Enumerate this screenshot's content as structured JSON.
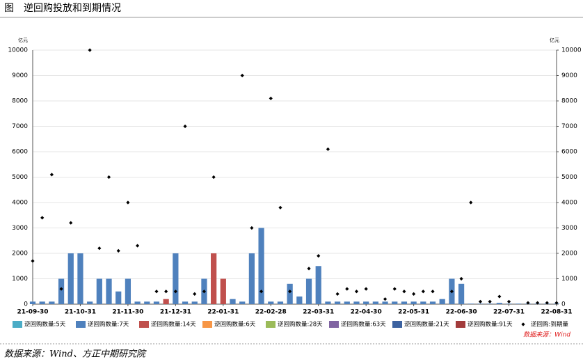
{
  "chart_data": {
    "type": "bar",
    "title": "图　逆回购投放和到期情况",
    "source": "数据来源：Wind、方正中期研究院",
    "inner_source": "数据来源：Wind",
    "y_unit": "亿元",
    "y2_unit": "亿元",
    "categories": [
      "21-09-30",
      null,
      null,
      null,
      null,
      "21-10-31",
      null,
      null,
      null,
      null,
      "21-11-30",
      null,
      null,
      null,
      null,
      "21-12-31",
      null,
      null,
      null,
      null,
      "22-01-31",
      null,
      null,
      null,
      null,
      "22-02-28",
      null,
      null,
      null,
      null,
      "22-03-31",
      null,
      null,
      null,
      null,
      "22-04-30",
      null,
      null,
      null,
      null,
      "22-05-31",
      null,
      null,
      null,
      null,
      "22-06-30",
      null,
      null,
      null,
      null,
      "22-07-31",
      null,
      null,
      null,
      null,
      "22-08-31"
    ],
    "ylim": [
      0,
      10000
    ],
    "yticks": [
      0,
      1000,
      2000,
      3000,
      4000,
      5000,
      6000,
      7000,
      8000,
      9000,
      10000
    ],
    "y2lim": [
      0,
      10000
    ],
    "y2ticks": [
      0,
      1000,
      2000,
      3000,
      4000,
      5000,
      6000,
      7000,
      8000,
      9000,
      10000
    ],
    "grid": true,
    "series": [
      {
        "name": "逆回购数量:5天",
        "color": "#4bacc6",
        "type": "bar"
      },
      {
        "name": "逆回购数量:7天",
        "color": "#4f81bd",
        "type": "bar",
        "values": [
          100,
          100,
          100,
          1000,
          2000,
          2000,
          100,
          1000,
          1000,
          500,
          1000,
          100,
          100,
          100,
          0,
          2000,
          100,
          100,
          1000,
          0,
          0,
          200,
          100,
          2000,
          3000,
          100,
          100,
          800,
          300,
          1000,
          1500,
          100,
          100,
          100,
          100,
          100,
          100,
          100,
          100,
          100,
          100,
          100,
          100,
          200,
          1000,
          800,
          20,
          20,
          20,
          50,
          20,
          20,
          20,
          20,
          20,
          20
        ]
      },
      {
        "name": "逆回购数量:14天",
        "color": "#c0504d",
        "type": "bar",
        "values": [
          null,
          null,
          null,
          null,
          null,
          null,
          null,
          null,
          null,
          null,
          null,
          null,
          null,
          null,
          200,
          null,
          null,
          null,
          null,
          2000,
          1000,
          null,
          null,
          null,
          null,
          null,
          null,
          null,
          null,
          null,
          null,
          null,
          null,
          null,
          null,
          null,
          null,
          null,
          null,
          null,
          null,
          null,
          null,
          null,
          null,
          null,
          null,
          null,
          null,
          null,
          null,
          null,
          null,
          null,
          null,
          null
        ]
      },
      {
        "name": "逆回购数量:6天",
        "color": "#f79646",
        "type": "bar"
      },
      {
        "name": "逆回购数量:28天",
        "color": "#9bbb59",
        "type": "bar"
      },
      {
        "name": "逆回购数量:63天",
        "color": "#8064a2",
        "type": "bar"
      },
      {
        "name": "逆回购数量:21天",
        "color": "#3c62a0",
        "type": "bar"
      },
      {
        "name": "逆回购数量:91天",
        "color": "#a23b3b",
        "type": "bar"
      },
      {
        "name": "逆回购:到期量",
        "color": "#000000",
        "type": "scatter",
        "axis": "y2",
        "values": [
          1700,
          3400,
          5100,
          600,
          3200,
          null,
          10000,
          2200,
          5000,
          2100,
          4000,
          2300,
          null,
          500,
          500,
          500,
          7000,
          400,
          500,
          5000,
          null,
          null,
          9000,
          3000,
          500,
          8100,
          3800,
          500,
          null,
          1400,
          1900,
          6100,
          400,
          600,
          500,
          600,
          null,
          200,
          600,
          500,
          400,
          500,
          500,
          null,
          500,
          1000,
          4000,
          100,
          100,
          300,
          100,
          null,
          50,
          50,
          50,
          50
        ]
      }
    ]
  }
}
